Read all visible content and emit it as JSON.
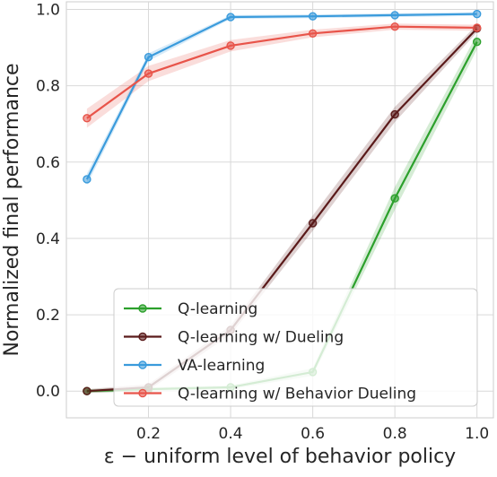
{
  "chart_data": {
    "type": "line",
    "title": "",
    "xlabel": "ε − uniform level of behavior policy",
    "ylabel": "Normalized final performance",
    "xlim": [
      0.0,
      1.04
    ],
    "ylim": [
      -0.07,
      1.02
    ],
    "xticks": [
      0.2,
      0.4,
      0.6,
      0.8,
      1.0
    ],
    "xtick_labels": [
      "0.2",
      "0.4",
      "0.6",
      "0.8",
      "1.0"
    ],
    "yticks": [
      0.0,
      0.2,
      0.4,
      0.6,
      0.8,
      1.0
    ],
    "ytick_labels": [
      "0.0",
      "0.2",
      "0.4",
      "0.6",
      "0.8",
      "1.0"
    ],
    "grid": true,
    "legend_position": "lower-right",
    "x": [
      0.05,
      0.2,
      0.4,
      0.6,
      0.8,
      1.0
    ],
    "series": [
      {
        "name": "Q-learning",
        "color": "#2ca02c",
        "values": [
          0.0,
          0.005,
          0.01,
          0.05,
          0.505,
          0.915
        ],
        "band": [
          0.005,
          0.005,
          0.005,
          0.01,
          0.03,
          0.02
        ]
      },
      {
        "name": "Q-learning w/ Dueling",
        "color": "#5a1a1a",
        "values": [
          0.0,
          0.01,
          0.16,
          0.44,
          0.725,
          0.95
        ],
        "band": [
          0.005,
          0.008,
          0.012,
          0.02,
          0.02,
          0.01
        ]
      },
      {
        "name": "VA-learning",
        "color": "#3a9bdc",
        "values": [
          0.555,
          0.875,
          0.98,
          0.982,
          0.985,
          0.988
        ],
        "band": [
          0.015,
          0.01,
          0.005,
          0.005,
          0.005,
          0.005
        ]
      },
      {
        "name": "Q-learning w/ Behavior Dueling",
        "color": "#e8544a",
        "values": [
          0.715,
          0.832,
          0.905,
          0.937,
          0.955,
          0.952
        ],
        "band": [
          0.025,
          0.02,
          0.015,
          0.01,
          0.008,
          0.008
        ]
      }
    ]
  }
}
